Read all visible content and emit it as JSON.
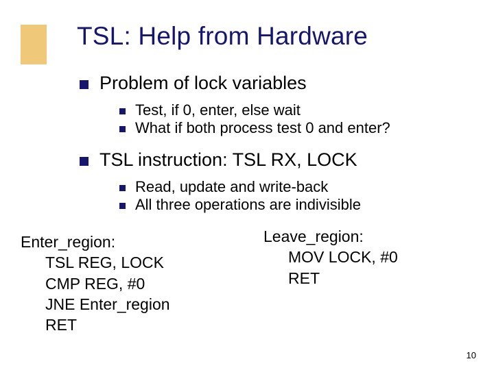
{
  "colors": {
    "accent_block": "#f0c87a",
    "title_color": "#16166f",
    "bullet_color": "#16166f",
    "text_color": "#000000",
    "background": "#ffffff"
  },
  "title": "TSL: Help from Hardware",
  "section1": {
    "heading": "Problem of lock variables",
    "items": [
      "Test, if 0, enter, else wait",
      "What if both process test 0 and enter?"
    ]
  },
  "section2": {
    "heading": "TSL instruction: TSL RX, LOCK",
    "items": [
      "Read, update and write-back",
      "All three operations are indivisible"
    ]
  },
  "code_left": {
    "label": "Enter_region:",
    "lines": [
      "TSL REG, LOCK",
      "CMP REG, #0",
      "JNE Enter_region",
      "RET"
    ]
  },
  "code_right": {
    "label": "Leave_region:",
    "lines": [
      "MOV LOCK, #0",
      "RET"
    ]
  },
  "slide_number": "10"
}
